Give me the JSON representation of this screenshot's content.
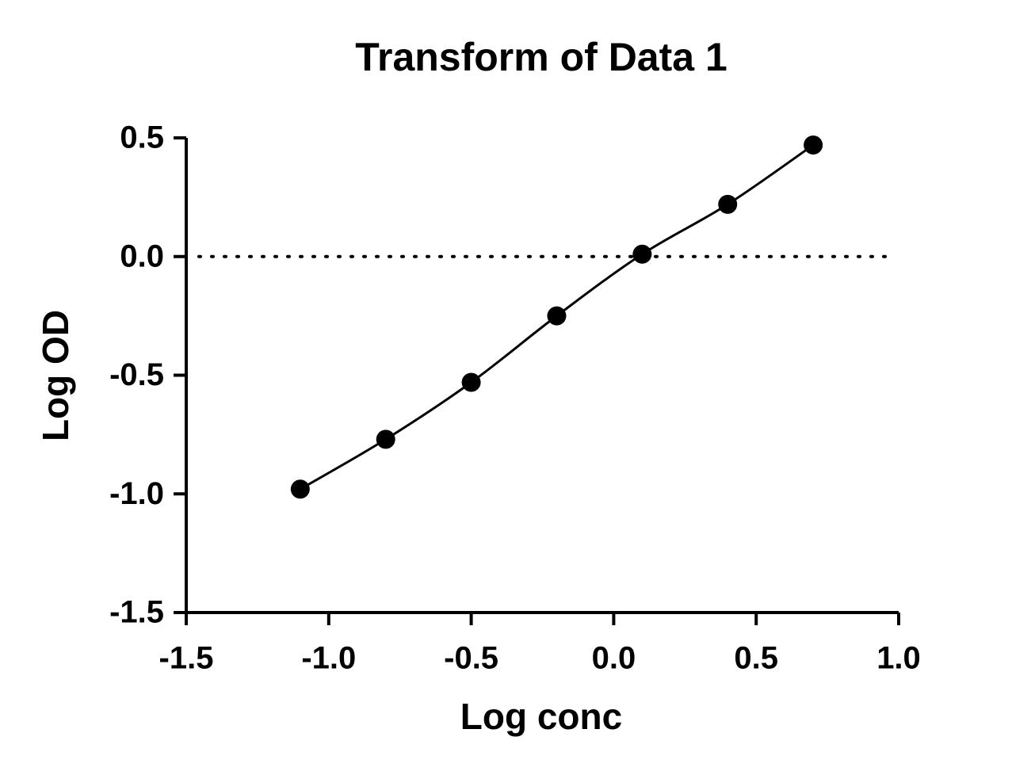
{
  "chart_data": {
    "type": "scatter",
    "title": "Transform of Data 1",
    "x_label": "Log conc",
    "y_label": "Log OD",
    "x": [
      -1.1,
      -0.8,
      -0.5,
      -0.2,
      0.1,
      0.4,
      0.7
    ],
    "values": [
      -0.98,
      -0.77,
      -0.53,
      -0.25,
      0.01,
      0.22,
      0.47
    ],
    "color": "#000000",
    "fit_curve": true,
    "reference_y": 0,
    "xlim": [
      -1.5,
      1.0
    ],
    "xticks": [
      -1.5,
      {
        "value": -1.0,
        "label": "-1.0"
      },
      -0.5,
      {
        "value": 0,
        "label": "0.0"
      },
      0.5,
      {
        "value": 1.0,
        "label": "1.0"
      }
    ],
    "ylim": [
      -1.5,
      0.5
    ],
    "yticks": [
      -1.5,
      {
        "value": -1.0,
        "label": "-1.0"
      },
      -0.5,
      {
        "value": 0,
        "label": "0.0"
      },
      0.5
    ]
  }
}
